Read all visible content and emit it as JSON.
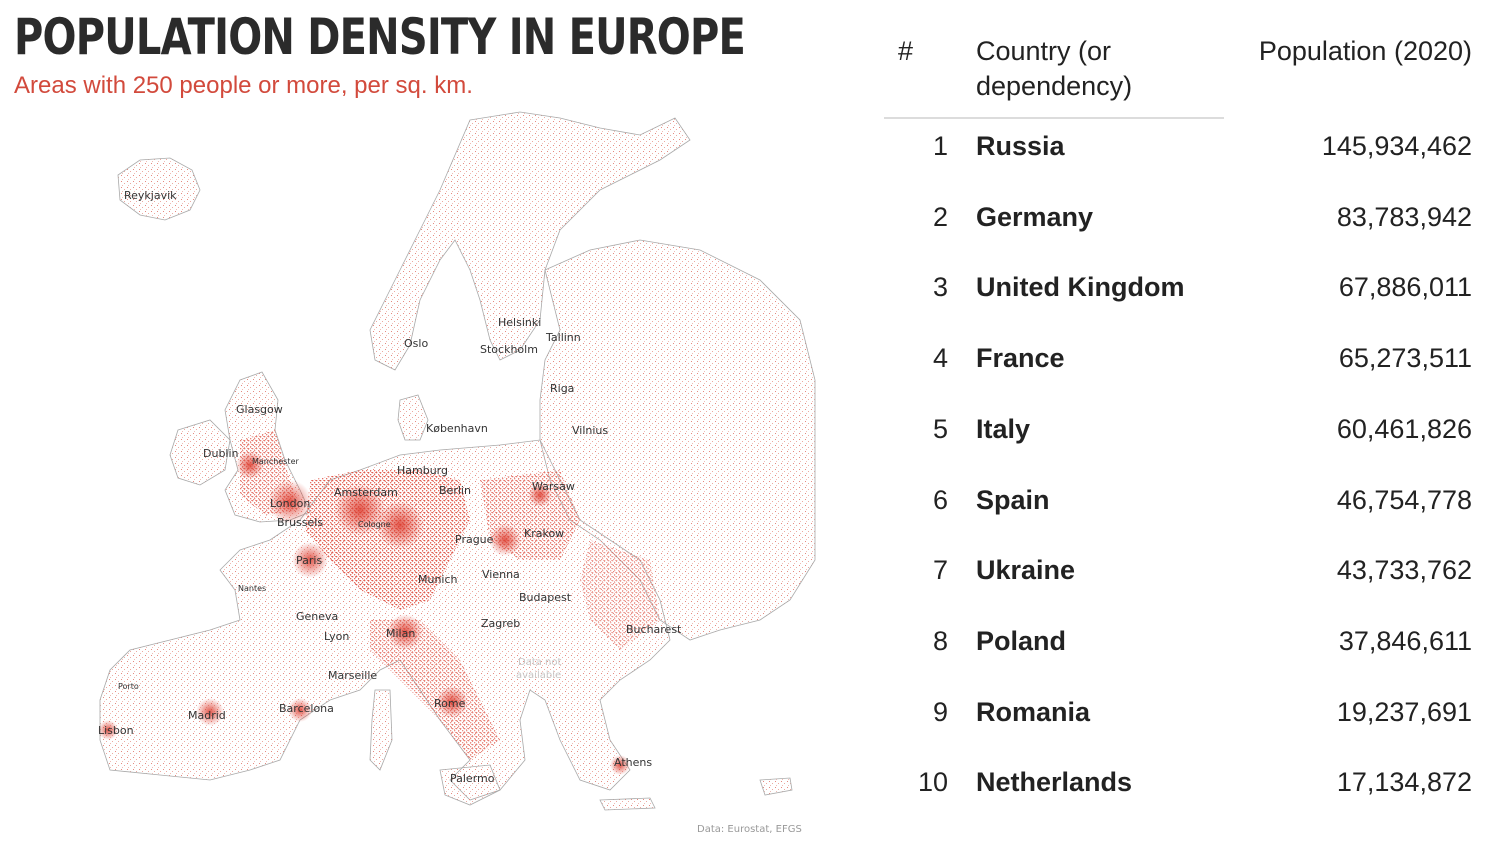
{
  "map": {
    "title": "POPULATION DENSITY IN EUROPE",
    "subtitle": "Areas with 250 people or more, per sq. km.",
    "credit": "Data: Eurostat, EFGS",
    "nodata_line1": "Data not",
    "nodata_line2": "available",
    "density_color": "#e03c31",
    "cities": {
      "reykjavik": "Reykjavik",
      "oslo": "Oslo",
      "stockholm": "Stockholm",
      "helsinki": "Helsinki",
      "tallinn": "Tallinn",
      "riga": "Riga",
      "vilnius": "Vilnius",
      "kobenhavn": "København",
      "glasgow": "Glasgow",
      "dublin": "Dublin",
      "manchester": "Manchester",
      "hamburg": "Hamburg",
      "amsterdam": "Amsterdam",
      "berlin": "Berlin",
      "warsaw": "Warsaw",
      "london": "London",
      "brussels": "Brussels",
      "cologne": "Cologne",
      "prague": "Prague",
      "krakow": "Krakow",
      "paris": "Paris",
      "munich": "Munich",
      "vienna": "Vienna",
      "nantes": "Nantes",
      "budapest": "Budapest",
      "geneva": "Geneva",
      "lyon": "Lyon",
      "milan": "Milan",
      "zagreb": "Zagreb",
      "bucharest": "Bucharest",
      "porto": "Porto",
      "marseille": "Marseille",
      "madrid": "Madrid",
      "barcelona": "Barcelona",
      "rome": "Rome",
      "lisbon": "Lisbon",
      "athens": "Athens",
      "palermo": "Palermo"
    }
  },
  "table": {
    "headers": {
      "rank": "#",
      "country": "Country (or dependency)",
      "population": "Population (2020)"
    },
    "rows": [
      {
        "rank": "1",
        "country": "Russia",
        "population": "145,934,462"
      },
      {
        "rank": "2",
        "country": "Germany",
        "population": "83,783,942"
      },
      {
        "rank": "3",
        "country": "United Kingdom",
        "population": "67,886,011"
      },
      {
        "rank": "4",
        "country": "France",
        "population": "65,273,511"
      },
      {
        "rank": "5",
        "country": "Italy",
        "population": "60,461,826"
      },
      {
        "rank": "6",
        "country": "Spain",
        "population": "46,754,778"
      },
      {
        "rank": "7",
        "country": "Ukraine",
        "population": "43,733,762"
      },
      {
        "rank": "8",
        "country": "Poland",
        "population": "37,846,611"
      },
      {
        "rank": "9",
        "country": "Romania",
        "population": "19,237,691"
      },
      {
        "rank": "10",
        "country": "Netherlands",
        "population": "17,134,872"
      }
    ]
  }
}
